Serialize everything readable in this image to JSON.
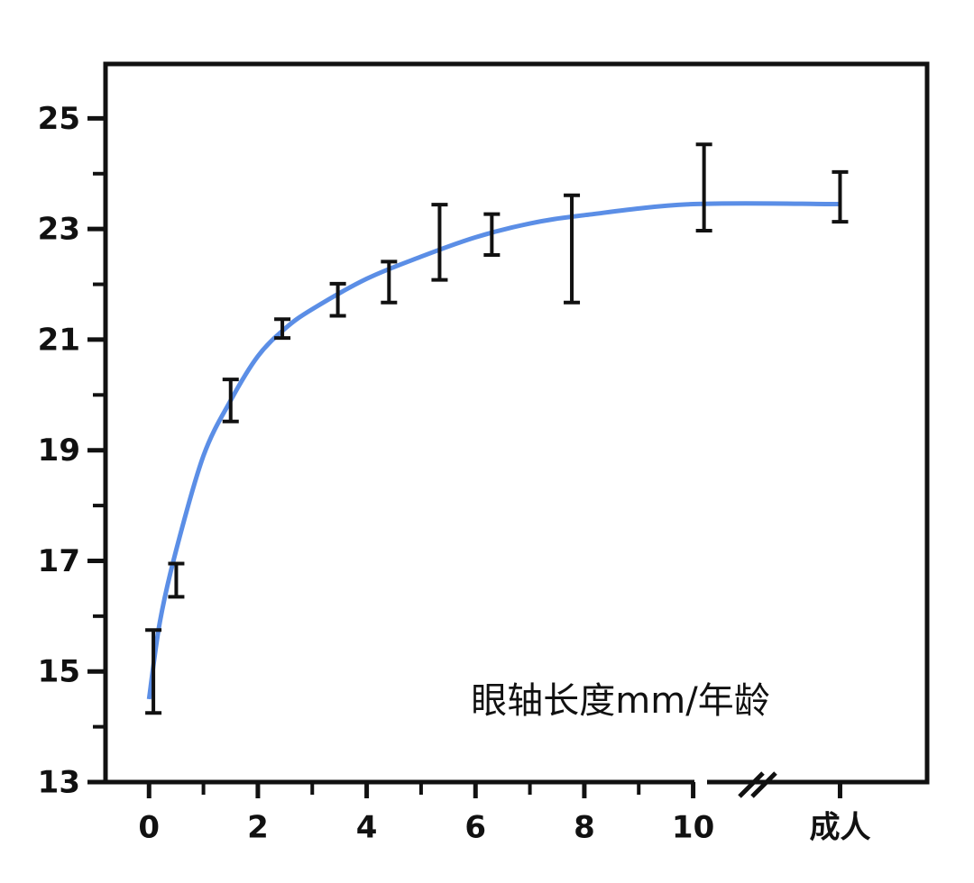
{
  "chart_data": {
    "type": "errorbar",
    "annotation": "眼轴长度mm/年龄",
    "x": [
      0.08,
      0.5,
      1.5,
      2.45,
      3.47,
      4.41,
      5.34,
      6.3,
      7.77,
      10.2,
      12.7
    ],
    "values": [
      15.0,
      16.65,
      19.9,
      21.2,
      21.72,
      22.04,
      22.76,
      22.9,
      22.64,
      23.75,
      23.58
    ],
    "errors": [
      0.75,
      0.3,
      0.38,
      0.17,
      0.29,
      0.37,
      0.68,
      0.37,
      0.97,
      0.78,
      0.45
    ],
    "color": "#111111",
    "fit": {
      "color": "#5b8ee6",
      "x": [
        0,
        0.2,
        0.5,
        1,
        1.5,
        2,
        2.5,
        3,
        4,
        5,
        6,
        7,
        8,
        10,
        12.7
      ],
      "values": [
        14.5,
        15.9,
        17.2,
        18.9,
        19.9,
        20.7,
        21.2,
        21.55,
        22.1,
        22.5,
        22.85,
        23.1,
        23.25,
        23.45,
        23.45
      ]
    },
    "xlim": [
      -0.8,
      14.3
    ],
    "ylim": [
      13,
      26
    ],
    "xticks": [
      0,
      2,
      4,
      6,
      8,
      10,
      {
        "value": 12.7,
        "label": "成人"
      }
    ],
    "xminor": [
      1,
      3,
      5,
      7,
      9
    ],
    "yticks": [
      13,
      15,
      17,
      19,
      21,
      23,
      25
    ],
    "yminor": [
      14,
      16,
      18,
      20,
      22,
      24
    ]
  }
}
